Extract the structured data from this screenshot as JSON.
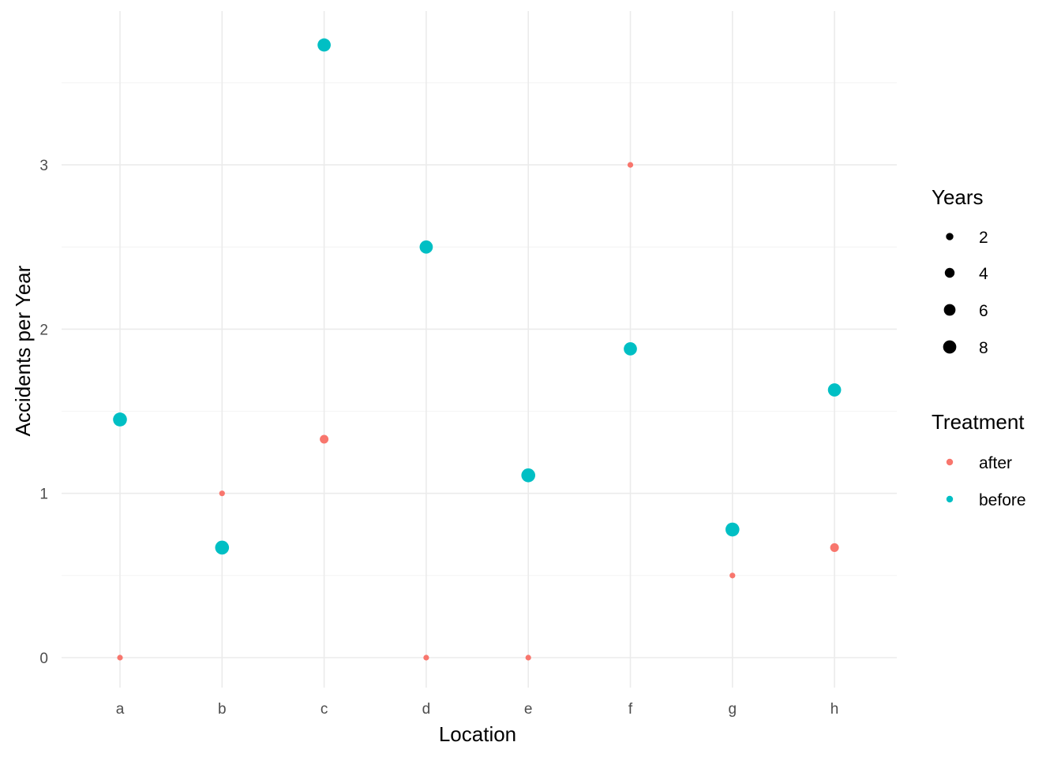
{
  "chart_data": {
    "type": "scatter",
    "title": "",
    "xlabel": "Location",
    "ylabel": "Accidents per Year",
    "categories": [
      "a",
      "b",
      "c",
      "d",
      "e",
      "f",
      "g",
      "h"
    ],
    "y_ticks": [
      "0",
      "1",
      "2",
      "3"
    ],
    "ylim": [
      -0.19,
      3.95
    ],
    "grid": true,
    "legend_position": "right",
    "series": [
      {
        "name": "after",
        "color": "#F8766D",
        "points": [
          {
            "x": "a",
            "y": 0,
            "years": 1
          },
          {
            "x": "b",
            "y": 1,
            "years": 1
          },
          {
            "x": "c",
            "y": 1.33,
            "years": 3
          },
          {
            "x": "d",
            "y": 0,
            "years": 1
          },
          {
            "x": "e",
            "y": 0,
            "years": 1
          },
          {
            "x": "f",
            "y": 3,
            "years": 1
          },
          {
            "x": "g",
            "y": 0.5,
            "years": 1
          },
          {
            "x": "h",
            "y": 0.67,
            "years": 3
          }
        ]
      },
      {
        "name": "before",
        "color": "#00BFC4",
        "points": [
          {
            "x": "a",
            "y": 1.45,
            "years": 9
          },
          {
            "x": "b",
            "y": 0.67,
            "years": 9
          },
          {
            "x": "c",
            "y": 3.73,
            "years": 8
          },
          {
            "x": "d",
            "y": 2.5,
            "years": 8
          },
          {
            "x": "e",
            "y": 1.11,
            "years": 9
          },
          {
            "x": "f",
            "y": 1.88,
            "years": 8
          },
          {
            "x": "g",
            "y": 0.78,
            "years": 9
          },
          {
            "x": "h",
            "y": 1.63,
            "years": 8
          }
        ]
      }
    ],
    "legends": {
      "size": {
        "title": "Years",
        "values": [
          2,
          4,
          6,
          8
        ],
        "labels": [
          "2",
          "4",
          "6",
          "8"
        ]
      },
      "color": {
        "title": "Treatment",
        "labels": [
          "after",
          "before"
        ]
      }
    }
  }
}
